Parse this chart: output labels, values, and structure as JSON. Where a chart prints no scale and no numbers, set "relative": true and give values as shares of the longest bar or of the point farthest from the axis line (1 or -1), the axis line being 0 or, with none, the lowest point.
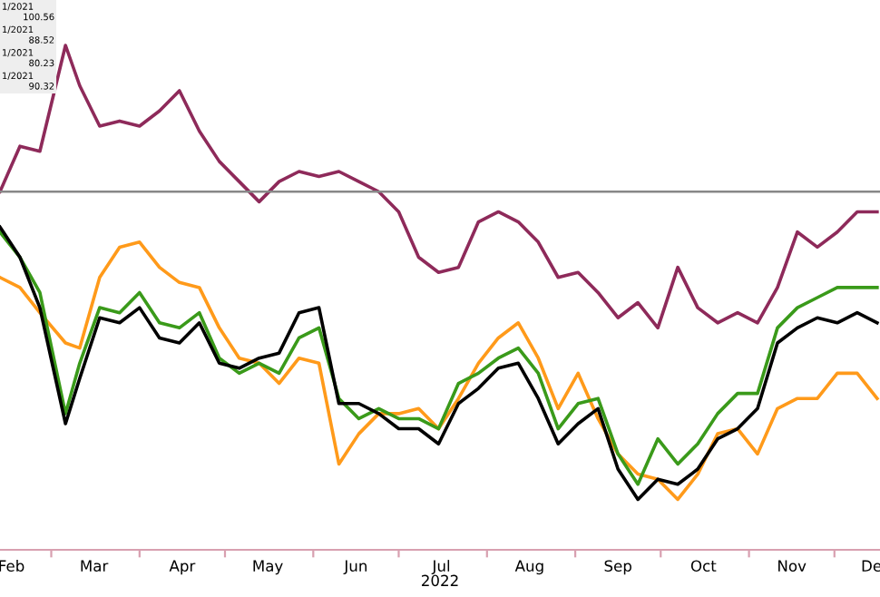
{
  "chart_data": {
    "type": "line",
    "relative": true,
    "xlabel": "2022",
    "x": [
      "2022-02-11",
      "2022-02-18",
      "2022-02-25",
      "2022-03-06",
      "2022-03-11",
      "2022-03-18",
      "2022-03-25",
      "2022-04-01",
      "2022-04-08",
      "2022-04-15",
      "2022-04-22",
      "2022-04-29",
      "2022-05-06",
      "2022-05-13",
      "2022-05-20",
      "2022-05-27",
      "2022-06-03",
      "2022-06-10",
      "2022-06-17",
      "2022-06-24",
      "2022-07-01",
      "2022-07-08",
      "2022-07-15",
      "2022-07-22",
      "2022-07-29",
      "2022-08-05",
      "2022-08-12",
      "2022-08-19",
      "2022-08-26",
      "2022-09-02",
      "2022-09-09",
      "2022-09-16",
      "2022-09-23",
      "2022-09-30",
      "2022-10-07",
      "2022-10-14",
      "2022-10-21",
      "2022-10-28",
      "2022-11-04",
      "2022-11-11",
      "2022-11-18",
      "2022-11-25",
      "2022-12-02",
      "2022-12-09",
      "2022-12-16"
    ],
    "xlim": [
      "2022-02-11",
      "2022-12-17"
    ],
    "xticks": [
      {
        "value": "2022-02-15",
        "label": "Feb"
      },
      {
        "value": "2022-03-01",
        "label": null
      },
      {
        "value": "2022-03-16",
        "label": "Mar"
      },
      {
        "value": "2022-04-01",
        "label": null
      },
      {
        "value": "2022-04-16",
        "label": "Apr"
      },
      {
        "value": "2022-05-01",
        "label": null
      },
      {
        "value": "2022-05-16",
        "label": "May"
      },
      {
        "value": "2022-06-01",
        "label": null
      },
      {
        "value": "2022-06-16",
        "label": "Jun"
      },
      {
        "value": "2022-07-01",
        "label": null
      },
      {
        "value": "2022-07-16",
        "label": "Jul"
      },
      {
        "value": "2022-08-01",
        "label": null
      },
      {
        "value": "2022-08-16",
        "label": "Aug"
      },
      {
        "value": "2022-09-01",
        "label": null
      },
      {
        "value": "2022-09-16",
        "label": "Sep"
      },
      {
        "value": "2022-10-01",
        "label": null
      },
      {
        "value": "2022-10-16",
        "label": "Oct"
      },
      {
        "value": "2022-11-01",
        "label": null
      },
      {
        "value": "2022-11-16",
        "label": "Nov"
      },
      {
        "value": "2022-12-01",
        "label": null
      },
      {
        "value": "2022-12-14",
        "label": "De"
      }
    ],
    "series": [
      {
        "color": "#8e2a5a",
        "values": [
          0.71,
          0.8,
          0.79,
          1.0,
          0.92,
          0.84,
          0.85,
          0.84,
          0.87,
          0.91,
          0.83,
          0.77,
          0.73,
          0.69,
          0.73,
          0.75,
          0.74,
          0.75,
          0.73,
          0.71,
          0.67,
          0.58,
          0.55,
          0.56,
          0.65,
          0.67,
          0.65,
          0.61,
          0.54,
          0.55,
          0.51,
          0.46,
          0.49,
          0.44,
          0.56,
          0.48,
          0.45,
          0.47,
          0.45,
          0.52,
          0.63,
          0.6,
          0.63,
          0.67,
          0.67
        ]
      },
      {
        "color": "#ff9a1a",
        "values": [
          0.54,
          0.52,
          0.47,
          0.41,
          0.4,
          0.54,
          0.6,
          0.61,
          0.56,
          0.53,
          0.52,
          0.44,
          0.38,
          0.37,
          0.33,
          0.38,
          0.37,
          0.17,
          0.23,
          0.27,
          0.27,
          0.28,
          0.24,
          0.3,
          0.37,
          0.42,
          0.45,
          0.38,
          0.28,
          0.35,
          0.26,
          0.19,
          0.15,
          0.14,
          0.1,
          0.15,
          0.23,
          0.24,
          0.19,
          0.28,
          0.3,
          0.3,
          0.35,
          0.35,
          0.3
        ]
      },
      {
        "color": "#3a9a1a",
        "values": [
          0.63,
          0.58,
          0.51,
          0.27,
          0.37,
          0.48,
          0.47,
          0.51,
          0.45,
          0.44,
          0.47,
          0.38,
          0.35,
          0.37,
          0.35,
          0.42,
          0.44,
          0.3,
          0.26,
          0.28,
          0.26,
          0.26,
          0.24,
          0.33,
          0.35,
          0.38,
          0.4,
          0.35,
          0.24,
          0.29,
          0.3,
          0.19,
          0.13,
          0.22,
          0.17,
          0.21,
          0.27,
          0.31,
          0.31,
          0.44,
          0.48,
          0.5,
          0.52,
          0.52,
          0.52
        ]
      },
      {
        "color": "#000000",
        "values": [
          0.64,
          0.58,
          0.48,
          0.25,
          0.34,
          0.46,
          0.45,
          0.48,
          0.42,
          0.41,
          0.45,
          0.37,
          0.36,
          0.38,
          0.39,
          0.47,
          0.48,
          0.29,
          0.29,
          0.27,
          0.24,
          0.24,
          0.21,
          0.29,
          0.32,
          0.36,
          0.37,
          0.3,
          0.21,
          0.25,
          0.28,
          0.16,
          0.1,
          0.14,
          0.13,
          0.16,
          0.22,
          0.24,
          0.28,
          0.41,
          0.44,
          0.46,
          0.45,
          0.47,
          0.45
        ]
      }
    ],
    "ref_lines": [
      {
        "axis": "y",
        "value": 0.71,
        "color": "#888888"
      }
    ],
    "annotations": [
      "1/2021",
      "100.56",
      "1/2021",
      "88.52",
      "1/2021",
      "80.23",
      "1/2021",
      "90.32"
    ],
    "grid": false,
    "legend": false
  }
}
